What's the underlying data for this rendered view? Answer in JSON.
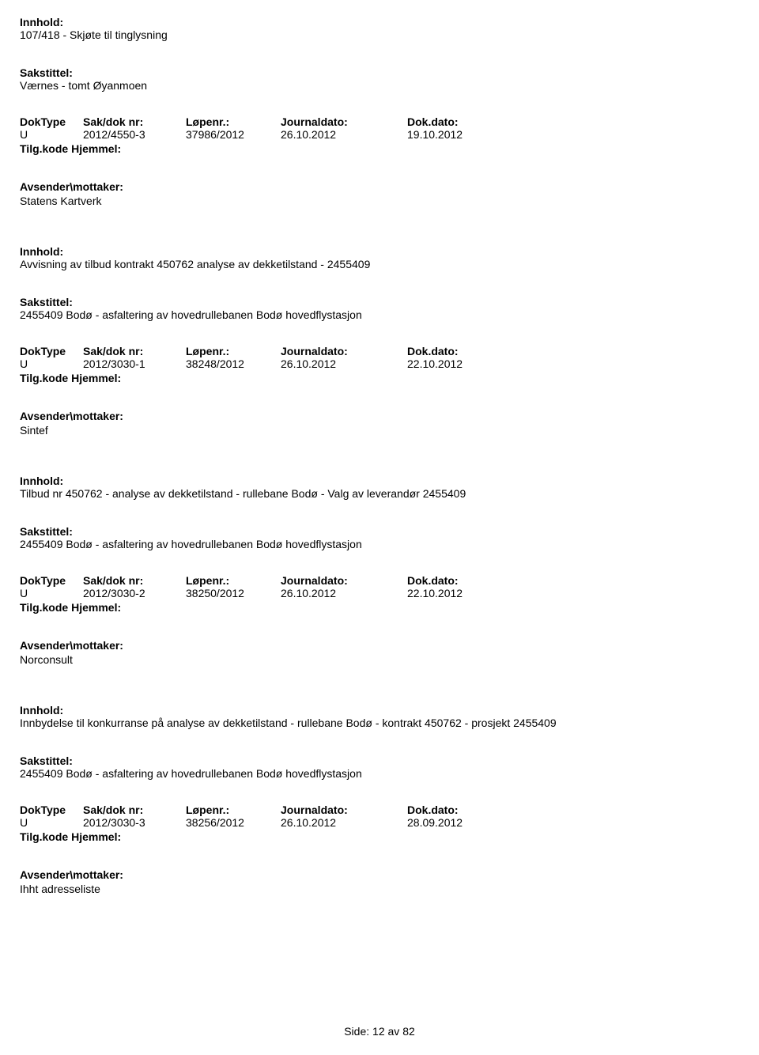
{
  "labels": {
    "innhold": "Innhold:",
    "sakstittel": "Sakstittel:",
    "doktype": "DokType",
    "sakdok": "Sak/dok nr:",
    "lopenr": "Løpenr.:",
    "journaldato": "Journaldato:",
    "dokdato": "Dok.dato:",
    "tilgkode": "Tilg.kode",
    "hjemmel": "Hjemmel:",
    "avsender": "Avsender\\mottaker:",
    "side": "Side:",
    "av": "av"
  },
  "records": [
    {
      "innhold": "107/418 - Skjøte til tinglysning",
      "sakstittel": "Værnes - tomt Øyanmoen",
      "doktype": "U",
      "sakdok": "2012/4550-3",
      "lopenr": "37986/2012",
      "journaldato": "26.10.2012",
      "dokdato": "19.10.2012",
      "avsender": "Statens Kartverk"
    },
    {
      "innhold": "Avvisning av tilbud kontrakt 450762 analyse av dekketilstand - 2455409",
      "sakstittel": "2455409 Bodø - asfaltering av hovedrullebanen Bodø hovedflystasjon",
      "doktype": "U",
      "sakdok": "2012/3030-1",
      "lopenr": "38248/2012",
      "journaldato": "26.10.2012",
      "dokdato": "22.10.2012",
      "avsender": "Sintef"
    },
    {
      "innhold": "Tilbud nr 450762 - analyse av dekketilstand - rullebane Bodø - Valg av leverandør 2455409",
      "sakstittel": "2455409 Bodø - asfaltering av hovedrullebanen Bodø hovedflystasjon",
      "doktype": "U",
      "sakdok": "2012/3030-2",
      "lopenr": "38250/2012",
      "journaldato": "26.10.2012",
      "dokdato": "22.10.2012",
      "avsender": "Norconsult"
    },
    {
      "innhold": "Innbydelse til konkurranse på analyse av dekketilstand - rullebane Bodø - kontrakt 450762 - prosjekt 2455409",
      "sakstittel": "2455409 Bodø - asfaltering av hovedrullebanen Bodø hovedflystasjon",
      "doktype": "U",
      "sakdok": "2012/3030-3",
      "lopenr": "38256/2012",
      "journaldato": "26.10.2012",
      "dokdato": "28.09.2012",
      "avsender": "Ihht adresseliste"
    }
  ],
  "footer": {
    "page": "12",
    "total": "82"
  }
}
